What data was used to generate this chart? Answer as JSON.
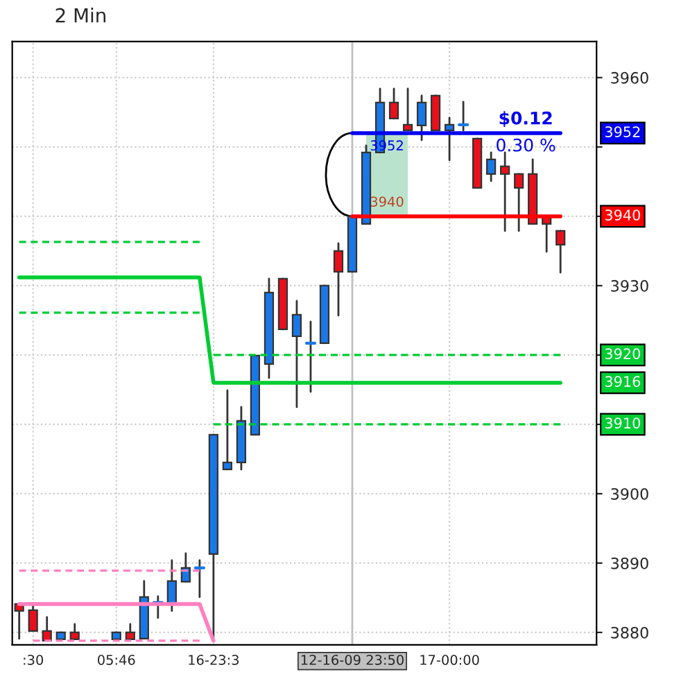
{
  "chart_data": {
    "type": "candlestick",
    "title": "2 Min",
    "categories": [
      null,
      ":30",
      null,
      null,
      null,
      null,
      null,
      "05:46",
      null,
      null,
      null,
      null,
      null,
      null,
      "16-23:3",
      null,
      null,
      null,
      null,
      null,
      null,
      null,
      null,
      null,
      "12-16-09 23:50",
      null,
      null,
      null,
      null,
      null,
      null,
      "17-00:00",
      null,
      null,
      null,
      null,
      null,
      null,
      null,
      null
    ],
    "ohlc": [
      [
        3884.1,
        3884.1,
        3879.1,
        3883.1
      ],
      [
        3883.2,
        3884.2,
        3880.2,
        3880.2
      ],
      [
        3880.2,
        3882.2,
        3878.8,
        3878.8
      ],
      [
        3879,
        3880,
        3879,
        3880
      ],
      [
        3880,
        3881.2,
        3879,
        3879
      ],
      null,
      null,
      [
        3879,
        3880,
        3879,
        3880
      ],
      [
        3880,
        3881.2,
        3879,
        3879
      ],
      [
        3879.1,
        3887.4,
        3879.1,
        3885.1
      ],
      [
        3884.3,
        3885.2,
        3882.1,
        3884.3
      ],
      [
        3884.1,
        3890.4,
        3883.1,
        3887.4
      ],
      [
        3887.3,
        3891.4,
        3887.3,
        3889.3
      ],
      [
        3889.3,
        3890.4,
        3885.1,
        3889.3
      ],
      [
        3891.3,
        3908.5,
        3879.1,
        3908.5
      ],
      [
        3903.5,
        3914.9,
        3903.5,
        3904.5
      ],
      [
        3904.5,
        3912.5,
        3903.5,
        3910.5
      ],
      [
        3908.5,
        3919.9,
        3908.5,
        3919.9
      ],
      [
        3918.7,
        3931,
        3916.7,
        3929
      ],
      [
        3931,
        3931,
        3923.7,
        3923.7
      ],
      [
        3922.7,
        3927.8,
        3912.5,
        3925.8
      ],
      [
        3921.7,
        3924.8,
        3914.7,
        3921.7
      ],
      [
        3921.7,
        3930,
        3921.7,
        3930
      ],
      [
        3935,
        3936.1,
        3925.7,
        3932
      ],
      [
        3932,
        3940,
        3932,
        3940
      ],
      [
        3938.9,
        3950.2,
        3938.9,
        3949.2
      ],
      [
        3949.2,
        3958.4,
        3949.2,
        3956.4
      ],
      [
        3956.4,
        3958.4,
        3954.1,
        3954.1
      ],
      [
        3953.2,
        3958.4,
        3952.4,
        3952.4
      ],
      [
        3953.1,
        3957.4,
        3951,
        3956.4
      ],
      [
        3957.4,
        3957.4,
        3952.4,
        3952.4
      ],
      [
        3952.4,
        3954.2,
        3948.1,
        3953.2
      ],
      [
        3953.2,
        3956.5,
        3952.4,
        3953.2
      ],
      [
        3951.2,
        3951.2,
        3944.1,
        3944.1
      ],
      [
        3946.1,
        3949.2,
        3945.1,
        3948.2
      ],
      [
        3947.2,
        3949.2,
        3937.9,
        3946.1
      ],
      [
        3946.1,
        3946.1,
        3937.9,
        3944.1
      ],
      [
        3946.1,
        3948.2,
        3938.9,
        3938.9
      ],
      [
        3939.9,
        3939.9,
        3934.9,
        3938.9
      ],
      [
        3937.9,
        3937.9,
        3931.9,
        3935.9
      ]
    ],
    "colors": [
      "#e8101c",
      "#e8101c",
      "#e8101c",
      "#1a78e6",
      "#e8101c",
      null,
      null,
      "#1a78e6",
      "#e8101c",
      "#1a78e6",
      "#1a78e6",
      "#1a78e6",
      "#1a78e6",
      "#1a78e6",
      "#1a78e6",
      "#1a78e6",
      "#1a78e6",
      "#1a78e6",
      "#1a78e6",
      "#e8101c",
      "#1a78e6",
      "#1a78e6",
      "#1a78e6",
      "#e8101c",
      "#1a78e6",
      "#1a78e6",
      "#1a78e6",
      "#e8101c",
      "#e8101c",
      "#1a78e6",
      "#e8101c",
      "#1a78e6",
      "#1a78e6",
      "#e8101c",
      "#1a78e6",
      "#e8101c",
      "#e8101c",
      "#e8101c",
      "#e8101c",
      "#e8101c"
    ],
    "series": [
      {
        "type": "line",
        "color": "#00cc33",
        "line_style": "solid",
        "values": [
          3931.2,
          3931.2,
          3931.2,
          3931.2,
          3931.2,
          3931.2,
          3931.2,
          3931.2,
          3931.2,
          3931.2,
          3931.2,
          3931.2,
          3931.2,
          3931.2,
          3916,
          3916,
          3916,
          3916,
          3916,
          3916,
          3916,
          3916,
          3916,
          3916,
          3916,
          3916,
          3916,
          3916,
          3916,
          3916,
          3916,
          3916,
          3916,
          3916,
          3916,
          3916,
          3916,
          3916,
          3916,
          3916
        ]
      },
      {
        "type": "line",
        "color": "#00cc33",
        "line_style": "dashed",
        "values": [
          3936.3,
          3936.3,
          3936.3,
          3936.3,
          3936.3,
          3936.3,
          3936.3,
          3936.3,
          3936.3,
          3936.3,
          3936.3,
          3936.3,
          3936.3,
          3936.3,
          null,
          null,
          null,
          null,
          null,
          null,
          null,
          null,
          null,
          null,
          null,
          null,
          null,
          null,
          null,
          null,
          null,
          null,
          null,
          null,
          null,
          null,
          null,
          null,
          null,
          null
        ]
      },
      {
        "type": "line",
        "color": "#00cc33",
        "line_style": "dashed",
        "values": [
          3926.1,
          3926.1,
          3926.1,
          3926.1,
          3926.1,
          3926.1,
          3926.1,
          3926.1,
          3926.1,
          3926.1,
          3926.1,
          3926.1,
          3926.1,
          3926.1,
          null,
          null,
          null,
          null,
          null,
          null,
          null,
          null,
          null,
          null,
          null,
          null,
          null,
          null,
          null,
          null,
          null,
          null,
          null,
          null,
          null,
          null,
          null,
          null,
          null,
          null
        ]
      },
      {
        "type": "line",
        "color": "#00cc33",
        "line_style": "dashed",
        "values": [
          null,
          null,
          null,
          null,
          null,
          null,
          null,
          null,
          null,
          null,
          null,
          null,
          null,
          null,
          3920,
          3920,
          3920,
          3920,
          3920,
          3920,
          3920,
          3920,
          3920,
          3920,
          3920,
          3920,
          3920,
          3920,
          3920,
          3920,
          3920,
          3920,
          3920,
          3920,
          3920,
          3920,
          3920,
          3920,
          3920,
          3920
        ]
      },
      {
        "type": "line",
        "color": "#00cc33",
        "line_style": "dashed",
        "values": [
          null,
          null,
          null,
          null,
          null,
          null,
          null,
          null,
          null,
          null,
          null,
          null,
          null,
          null,
          3910,
          3910,
          3910,
          3910,
          3910,
          3910,
          3910,
          3910,
          3910,
          3910,
          3910,
          3910,
          3910,
          3910,
          3910,
          3910,
          3910,
          3910,
          3910,
          3910,
          3910,
          3910,
          3910,
          3910,
          3910,
          3910
        ]
      },
      {
        "type": "line",
        "color": "#ff7fbf",
        "line_style": "solid",
        "values": [
          3884.1,
          3884.1,
          3884.1,
          3884.1,
          3884.1,
          3884.1,
          3884.1,
          3884.1,
          3884.1,
          3884.1,
          3884.1,
          3884.1,
          3884.1,
          3884.1,
          3878.8,
          null,
          null,
          null,
          null,
          null,
          null,
          null,
          null,
          null,
          null,
          null,
          null,
          null,
          null,
          null,
          null,
          null,
          null,
          null,
          null,
          null,
          null,
          null,
          null,
          null
        ]
      },
      {
        "type": "line",
        "color": "#ff7fbf",
        "line_style": "dashed",
        "values": [
          3888.9,
          3888.9,
          3888.9,
          3888.9,
          3888.9,
          3888.9,
          3888.9,
          3888.9,
          3888.9,
          3888.9,
          3888.9,
          3888.9,
          3888.9,
          3888.9,
          null,
          null,
          null,
          null,
          null,
          null,
          null,
          null,
          null,
          null,
          null,
          null,
          null,
          null,
          null,
          null,
          null,
          null,
          null,
          null,
          null,
          null,
          null,
          null,
          null,
          null
        ]
      },
      {
        "type": "line",
        "color": "#ff7fbf",
        "line_style": "dashed",
        "values": [
          null,
          3878.8,
          3878.8,
          3878.8,
          3878.8,
          3878.8,
          3878.8,
          3878.8,
          3878.8,
          3878.8,
          3878.8,
          3878.8,
          3878.8,
          3878.8,
          null,
          null,
          null,
          null,
          null,
          null,
          null,
          null,
          null,
          null,
          null,
          null,
          null,
          null,
          null,
          null,
          null,
          null,
          null,
          null,
          null,
          null,
          null,
          null,
          null,
          null
        ]
      },
      {
        "type": "line",
        "color": "#a8dcc0",
        "values": [
          null,
          null,
          null,
          null,
          null,
          null,
          null,
          null,
          null,
          null,
          null,
          null,
          null,
          null,
          null,
          null,
          null,
          null,
          null,
          null,
          null,
          null,
          null,
          null,
          null,
          null,
          null,
          null,
          null,
          null,
          null,
          null,
          null,
          null,
          null,
          null,
          null,
          null,
          null,
          null
        ],
        "lower": [
          null,
          null,
          null,
          null,
          null,
          null,
          null,
          null,
          null,
          null,
          null,
          null,
          null,
          null,
          null,
          null,
          null,
          null,
          null,
          null,
          null,
          null,
          null,
          null,
          null,
          3940,
          3940,
          3940,
          3940,
          null,
          null,
          null,
          null,
          null,
          null,
          null,
          null,
          null,
          null,
          null
        ],
        "upper": [
          null,
          null,
          null,
          null,
          null,
          null,
          null,
          null,
          null,
          null,
          null,
          null,
          null,
          null,
          null,
          null,
          null,
          null,
          null,
          null,
          null,
          null,
          null,
          null,
          null,
          3952,
          3952,
          3952,
          3952,
          null,
          null,
          null,
          null,
          null,
          null,
          null,
          null,
          null,
          null,
          null
        ]
      },
      {
        "type": "line",
        "color": "#0000ee",
        "line_style": "solid",
        "values": [
          null,
          null,
          null,
          null,
          null,
          null,
          null,
          null,
          null,
          null,
          null,
          null,
          null,
          null,
          null,
          null,
          null,
          null,
          null,
          null,
          null,
          null,
          null,
          null,
          3952,
          3952,
          3952,
          3952,
          3952,
          3952,
          3952,
          3952,
          3952,
          3952,
          3952,
          3952,
          3952,
          3952,
          3952,
          3952
        ]
      },
      {
        "type": "line",
        "color": "#ff0000",
        "line_style": "solid",
        "values": [
          null,
          null,
          null,
          null,
          null,
          null,
          null,
          null,
          null,
          null,
          null,
          null,
          null,
          null,
          null,
          null,
          null,
          null,
          null,
          null,
          null,
          null,
          null,
          null,
          3940,
          3940,
          3940,
          3940,
          3940,
          3940,
          3940,
          3940,
          3940,
          3940,
          3940,
          3940,
          3940,
          3940,
          3940,
          3940
        ]
      }
    ],
    "annotations": [
      "$0.12",
      "0.30 %",
      "3952",
      "3940",
      "3952",
      "3940",
      "3920",
      "3916",
      "3910"
    ],
    "ref_lines": [
      {
        "axis": "x",
        "value": "12-16-09 23:50",
        "color": "#c0c0c0"
      }
    ],
    "ylim": [
      3878.2,
      3965.2
    ],
    "yticks": [
      3880,
      3890,
      3900,
      {
        "value": 3910,
        "label": null
      },
      {
        "value": 3920,
        "label": null
      },
      3930,
      {
        "value": 3940,
        "label": null
      },
      {
        "value": 3950,
        "label": null
      },
      3960
    ],
    "grid": true
  }
}
